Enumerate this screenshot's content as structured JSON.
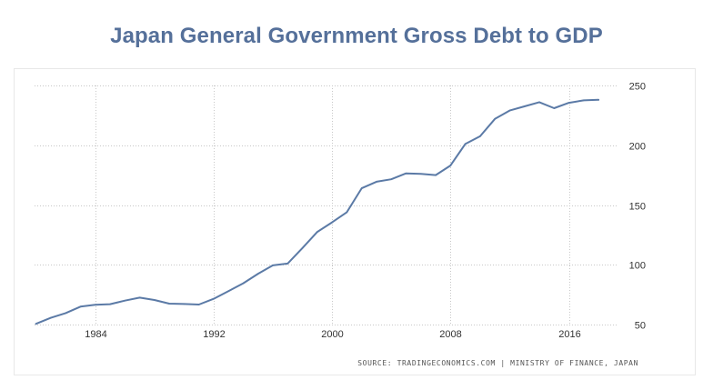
{
  "chart_data": {
    "type": "line",
    "title": "Japan General Government Gross Debt to GDP",
    "source": "SOURCE: TRADINGECONOMICS.COM | MINISTRY OF FINANCE, JAPAN",
    "xlabel": "",
    "ylabel": "",
    "x_ticks": [
      1984,
      1992,
      2000,
      2008,
      2016
    ],
    "y_ticks": [
      50,
      100,
      150,
      200,
      250
    ],
    "xlim": [
      1979.9,
      2019.1
    ],
    "ylim": [
      50,
      250
    ],
    "series": [
      {
        "name": "Gross Debt to GDP",
        "color": "#5b7aa6",
        "x": [
          1980,
          1981,
          1982,
          1983,
          1984,
          1985,
          1986,
          1987,
          1988,
          1989,
          1990,
          1991,
          1992,
          1993,
          1994,
          1995,
          1996,
          1997,
          1998,
          1999,
          2000,
          2001,
          2002,
          2003,
          2004,
          2005,
          2006,
          2007,
          2008,
          2009,
          2010,
          2011,
          2012,
          2013,
          2014,
          2015,
          2016,
          2017,
          2018
        ],
        "values": [
          50.6,
          55.6,
          59.6,
          65.0,
          66.5,
          67.0,
          70.0,
          72.5,
          70.5,
          67.5,
          67.2,
          66.7,
          71.5,
          78.0,
          84.5,
          92.5,
          99.5,
          101.0,
          114.0,
          127.5,
          135.5,
          144.0,
          164.0,
          169.5,
          171.5,
          176.5,
          176.0,
          175.0,
          183.0,
          201.0,
          207.5,
          222.0,
          229.0,
          232.5,
          236.0,
          231.0,
          235.5,
          237.5,
          238.0
        ]
      }
    ],
    "grid": true,
    "legend": "none",
    "y_axis_side": "right"
  }
}
